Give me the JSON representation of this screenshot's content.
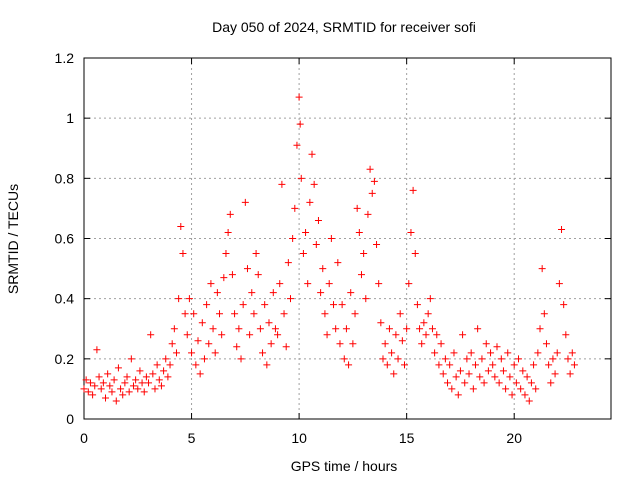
{
  "chart_data": {
    "type": "scatter",
    "title": "Day 050 of 2024, SRMTID for receiver sofi",
    "xlabel": "GPS time / hours",
    "ylabel": "SRMTID / TECUs",
    "xlim": [
      0,
      24.5
    ],
    "ylim": [
      0,
      1.2
    ],
    "xticks": [
      0,
      5,
      10,
      15,
      20
    ],
    "xtick_labels": [
      "0",
      "5",
      "10",
      "15",
      "20"
    ],
    "yticks": [
      0,
      0.2,
      0.4,
      0.6,
      0.8,
      1.0,
      1.2
    ],
    "ytick_labels": [
      "0",
      "0.2",
      "0.4",
      "0.6",
      "0.8",
      "1",
      "1.2"
    ],
    "grid": true,
    "marker": "+",
    "color": "#ff0000",
    "series": [
      {
        "name": "SRMTID",
        "points": [
          [
            0.0,
            0.1
          ],
          [
            0.1,
            0.13
          ],
          [
            0.2,
            0.09
          ],
          [
            0.3,
            0.12
          ],
          [
            0.4,
            0.08
          ],
          [
            0.5,
            0.11
          ],
          [
            0.6,
            0.23
          ],
          [
            0.7,
            0.14
          ],
          [
            0.8,
            0.1
          ],
          [
            0.9,
            0.12
          ],
          [
            1.0,
            0.07
          ],
          [
            1.1,
            0.15
          ],
          [
            1.2,
            0.11
          ],
          [
            1.3,
            0.09
          ],
          [
            1.4,
            0.13
          ],
          [
            1.5,
            0.06
          ],
          [
            1.6,
            0.17
          ],
          [
            1.7,
            0.1
          ],
          [
            1.8,
            0.08
          ],
          [
            1.9,
            0.12
          ],
          [
            2.0,
            0.14
          ],
          [
            2.1,
            0.09
          ],
          [
            2.2,
            0.2
          ],
          [
            2.3,
            0.11
          ],
          [
            2.4,
            0.13
          ],
          [
            2.5,
            0.1
          ],
          [
            2.6,
            0.16
          ],
          [
            2.7,
            0.12
          ],
          [
            2.8,
            0.09
          ],
          [
            2.9,
            0.14
          ],
          [
            3.0,
            0.12
          ],
          [
            3.1,
            0.28
          ],
          [
            3.2,
            0.15
          ],
          [
            3.3,
            0.1
          ],
          [
            3.4,
            0.18
          ],
          [
            3.5,
            0.13
          ],
          [
            3.6,
            0.11
          ],
          [
            3.7,
            0.16
          ],
          [
            3.8,
            0.2
          ],
          [
            3.9,
            0.14
          ],
          [
            4.0,
            0.18
          ],
          [
            4.1,
            0.25
          ],
          [
            4.2,
            0.3
          ],
          [
            4.3,
            0.22
          ],
          [
            4.4,
            0.4
          ],
          [
            4.5,
            0.64
          ],
          [
            4.6,
            0.55
          ],
          [
            4.7,
            0.35
          ],
          [
            4.8,
            0.28
          ],
          [
            4.9,
            0.4
          ],
          [
            5.0,
            0.22
          ],
          [
            5.1,
            0.35
          ],
          [
            5.2,
            0.18
          ],
          [
            5.3,
            0.26
          ],
          [
            5.4,
            0.15
          ],
          [
            5.5,
            0.32
          ],
          [
            5.6,
            0.2
          ],
          [
            5.7,
            0.38
          ],
          [
            5.8,
            0.25
          ],
          [
            5.9,
            0.45
          ],
          [
            6.0,
            0.3
          ],
          [
            6.1,
            0.22
          ],
          [
            6.2,
            0.42
          ],
          [
            6.3,
            0.35
          ],
          [
            6.4,
            0.28
          ],
          [
            6.5,
            0.47
          ],
          [
            6.6,
            0.55
          ],
          [
            6.7,
            0.62
          ],
          [
            6.8,
            0.68
          ],
          [
            6.9,
            0.48
          ],
          [
            7.0,
            0.35
          ],
          [
            7.1,
            0.24
          ],
          [
            7.2,
            0.3
          ],
          [
            7.3,
            0.2
          ],
          [
            7.4,
            0.38
          ],
          [
            7.5,
            0.72
          ],
          [
            7.6,
            0.5
          ],
          [
            7.7,
            0.28
          ],
          [
            7.8,
            0.42
          ],
          [
            7.9,
            0.35
          ],
          [
            8.0,
            0.55
          ],
          [
            8.1,
            0.48
          ],
          [
            8.2,
            0.3
          ],
          [
            8.3,
            0.22
          ],
          [
            8.4,
            0.38
          ],
          [
            8.5,
            0.18
          ],
          [
            8.6,
            0.32
          ],
          [
            8.7,
            0.25
          ],
          [
            8.8,
            0.42
          ],
          [
            8.9,
            0.3
          ],
          [
            9.0,
            0.28
          ],
          [
            9.1,
            0.45
          ],
          [
            9.2,
            0.78
          ],
          [
            9.3,
            0.35
          ],
          [
            9.4,
            0.24
          ],
          [
            9.5,
            0.52
          ],
          [
            9.6,
            0.4
          ],
          [
            9.7,
            0.6
          ],
          [
            9.8,
            0.7
          ],
          [
            9.9,
            0.91
          ],
          [
            10.0,
            1.07
          ],
          [
            10.05,
            0.98
          ],
          [
            10.1,
            0.8
          ],
          [
            10.2,
            0.55
          ],
          [
            10.3,
            0.62
          ],
          [
            10.4,
            0.45
          ],
          [
            10.5,
            0.72
          ],
          [
            10.6,
            0.88
          ],
          [
            10.7,
            0.78
          ],
          [
            10.8,
            0.58
          ],
          [
            10.9,
            0.66
          ],
          [
            11.0,
            0.42
          ],
          [
            11.1,
            0.5
          ],
          [
            11.2,
            0.35
          ],
          [
            11.3,
            0.28
          ],
          [
            11.4,
            0.45
          ],
          [
            11.5,
            0.6
          ],
          [
            11.6,
            0.38
          ],
          [
            11.7,
            0.3
          ],
          [
            11.8,
            0.52
          ],
          [
            11.9,
            0.25
          ],
          [
            12.0,
            0.38
          ],
          [
            12.1,
            0.2
          ],
          [
            12.2,
            0.3
          ],
          [
            12.3,
            0.18
          ],
          [
            12.4,
            0.42
          ],
          [
            12.5,
            0.25
          ],
          [
            12.6,
            0.35
          ],
          [
            12.7,
            0.7
          ],
          [
            12.8,
            0.62
          ],
          [
            12.9,
            0.48
          ],
          [
            13.0,
            0.55
          ],
          [
            13.1,
            0.4
          ],
          [
            13.2,
            0.68
          ],
          [
            13.3,
            0.83
          ],
          [
            13.4,
            0.75
          ],
          [
            13.5,
            0.79
          ],
          [
            13.6,
            0.58
          ],
          [
            13.7,
            0.45
          ],
          [
            13.8,
            0.32
          ],
          [
            13.9,
            0.2
          ],
          [
            14.0,
            0.25
          ],
          [
            14.1,
            0.18
          ],
          [
            14.2,
            0.3
          ],
          [
            14.3,
            0.22
          ],
          [
            14.4,
            0.15
          ],
          [
            14.5,
            0.28
          ],
          [
            14.6,
            0.2
          ],
          [
            14.7,
            0.35
          ],
          [
            14.8,
            0.26
          ],
          [
            14.9,
            0.18
          ],
          [
            15.0,
            0.3
          ],
          [
            15.1,
            0.45
          ],
          [
            15.2,
            0.62
          ],
          [
            15.3,
            0.76
          ],
          [
            15.4,
            0.55
          ],
          [
            15.5,
            0.38
          ],
          [
            15.6,
            0.3
          ],
          [
            15.7,
            0.25
          ],
          [
            15.8,
            0.32
          ],
          [
            15.9,
            0.28
          ],
          [
            16.0,
            0.35
          ],
          [
            16.1,
            0.4
          ],
          [
            16.2,
            0.3
          ],
          [
            16.3,
            0.22
          ],
          [
            16.4,
            0.28
          ],
          [
            16.5,
            0.18
          ],
          [
            16.6,
            0.25
          ],
          [
            16.7,
            0.15
          ],
          [
            16.8,
            0.2
          ],
          [
            16.9,
            0.12
          ],
          [
            17.0,
            0.18
          ],
          [
            17.1,
            0.1
          ],
          [
            17.2,
            0.22
          ],
          [
            17.3,
            0.14
          ],
          [
            17.4,
            0.08
          ],
          [
            17.5,
            0.16
          ],
          [
            17.6,
            0.28
          ],
          [
            17.7,
            0.12
          ],
          [
            17.8,
            0.2
          ],
          [
            17.9,
            0.15
          ],
          [
            18.0,
            0.22
          ],
          [
            18.1,
            0.1
          ],
          [
            18.2,
            0.18
          ],
          [
            18.3,
            0.3
          ],
          [
            18.4,
            0.14
          ],
          [
            18.5,
            0.2
          ],
          [
            18.6,
            0.12
          ],
          [
            18.7,
            0.25
          ],
          [
            18.8,
            0.16
          ],
          [
            18.9,
            0.22
          ],
          [
            19.0,
            0.18
          ],
          [
            19.1,
            0.14
          ],
          [
            19.2,
            0.24
          ],
          [
            19.3,
            0.12
          ],
          [
            19.4,
            0.2
          ],
          [
            19.5,
            0.16
          ],
          [
            19.6,
            0.1
          ],
          [
            19.7,
            0.22
          ],
          [
            19.8,
            0.14
          ],
          [
            19.9,
            0.08
          ],
          [
            20.0,
            0.18
          ],
          [
            20.1,
            0.12
          ],
          [
            20.2,
            0.2
          ],
          [
            20.3,
            0.1
          ],
          [
            20.4,
            0.16
          ],
          [
            20.5,
            0.08
          ],
          [
            20.6,
            0.14
          ],
          [
            20.7,
            0.06
          ],
          [
            20.8,
            0.12
          ],
          [
            20.9,
            0.18
          ],
          [
            21.0,
            0.1
          ],
          [
            21.1,
            0.22
          ],
          [
            21.2,
            0.3
          ],
          [
            21.3,
            0.5
          ],
          [
            21.4,
            0.35
          ],
          [
            21.5,
            0.25
          ],
          [
            21.6,
            0.18
          ],
          [
            21.7,
            0.12
          ],
          [
            21.8,
            0.2
          ],
          [
            21.9,
            0.15
          ],
          [
            22.0,
            0.22
          ],
          [
            22.1,
            0.45
          ],
          [
            22.2,
            0.63
          ],
          [
            22.3,
            0.38
          ],
          [
            22.4,
            0.28
          ],
          [
            22.5,
            0.2
          ],
          [
            22.6,
            0.15
          ],
          [
            22.7,
            0.22
          ],
          [
            22.8,
            0.18
          ]
        ]
      }
    ]
  }
}
